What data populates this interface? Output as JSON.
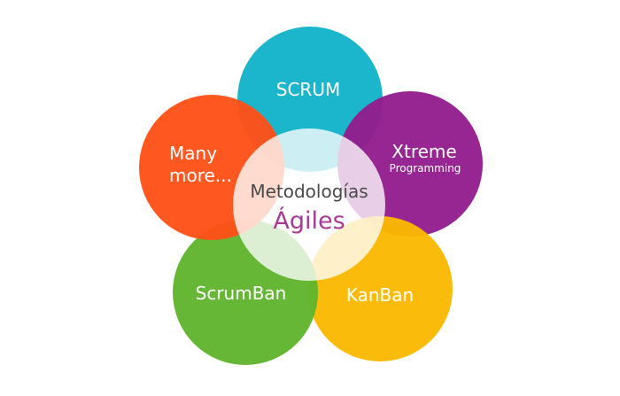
{
  "center": {
    "title": "Metodologías",
    "subtitle": "Ágiles",
    "subtitle_color": "#a83a96"
  },
  "petals": {
    "scrum": {
      "label": "SCRUM",
      "color": "#12b3c9"
    },
    "xtreme": {
      "label_line1": "Xtreme",
      "label_line2": "Programming",
      "color": "#931d8e"
    },
    "kanban": {
      "label": "KanBan",
      "color": "#fbb800"
    },
    "scrumban": {
      "label": "ScrumBan",
      "color": "#60b42d"
    },
    "many": {
      "label_line1": "Many",
      "label_line2": "more...",
      "color": "#ff5017"
    }
  }
}
